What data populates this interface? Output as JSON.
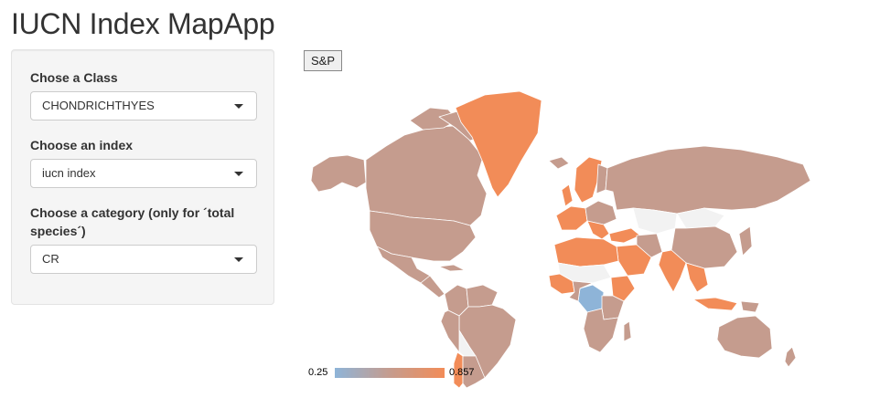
{
  "app": {
    "title": "IUCN Index MapApp"
  },
  "controls": {
    "class_label": "Chose a Class",
    "class_value": "CHONDRICHTHYES",
    "index_label": "Choose an index",
    "index_value": "iucn index",
    "category_label": "Choose a category (only for ´total species´)",
    "category_value": "CR"
  },
  "map": {
    "projection_button": "S&P",
    "legend": {
      "min": "0.25",
      "max": "0.857"
    },
    "colors": {
      "low": "#8eb4d8",
      "mid": "#c59c8e",
      "high": "#f28c58",
      "no_data": "#f2f2f2",
      "border": "#ffffff"
    }
  }
}
